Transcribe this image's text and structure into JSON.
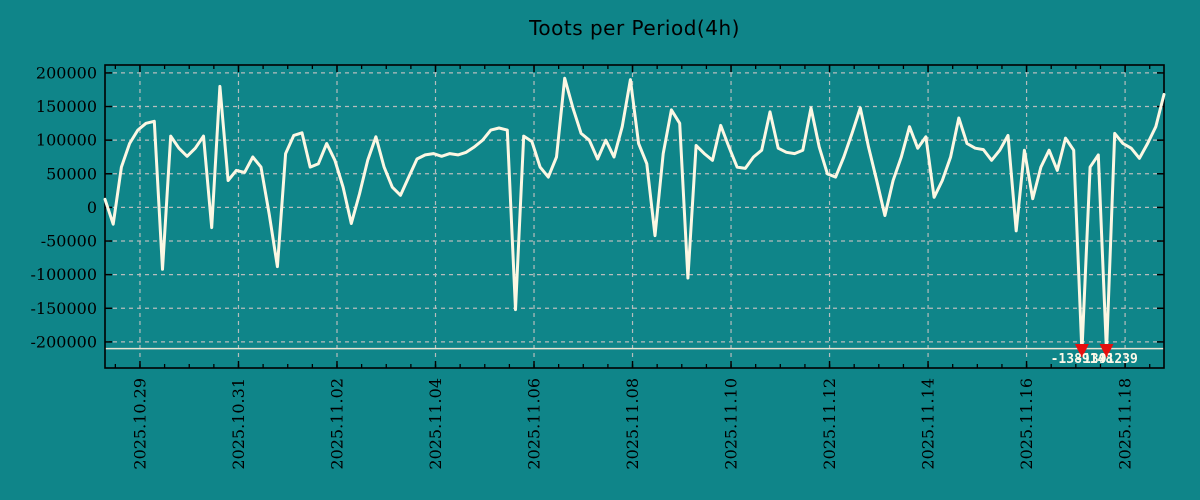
{
  "colors": {
    "background": "#0f8589",
    "line": "#fcf7e3",
    "floor_line": "#e9e5d4",
    "grid": "#b6bdbd",
    "border": "#000000",
    "tick_label": "#000000",
    "marker_red": "#e60f0f",
    "annotation_text": "#fdf8e8"
  },
  "chart_data": {
    "type": "line",
    "title": "Toots per Period(4h)",
    "sample_interval": "4h",
    "ylim": [
      -200000,
      200000
    ],
    "grid": true,
    "legend": "none",
    "y_ticks": [
      200000,
      150000,
      100000,
      50000,
      0,
      -50000,
      -100000,
      -150000,
      -200000
    ],
    "y_tick_labels": [
      "200000",
      "150000",
      "100000",
      "50000",
      "0",
      "-50000",
      "-100000",
      "-150000",
      "-200000"
    ],
    "x_tick_labels": [
      "2025.10.29",
      "2025.10.31",
      "2025.11.02",
      "2025.11.04",
      "2025.11.06",
      "2025.11.08",
      "2025.11.10",
      "2025.11.12",
      "2025.11.14",
      "2025.11.16",
      "2025.11.18"
    ],
    "x_tick_indices": [
      4.26,
      16.26,
      28.26,
      40.26,
      52.26,
      64.26,
      76.26,
      88.26,
      100.26,
      112.26,
      124.26
    ],
    "minor_tick_step": 3,
    "floor_line_value": -210000,
    "values": [
      12000,
      -25000,
      60000,
      95000,
      115000,
      125000,
      128000,
      -92000,
      106000,
      88000,
      76000,
      88000,
      106000,
      -30000,
      180000,
      40000,
      55000,
      52000,
      75000,
      60000,
      -10000,
      -88000,
      80000,
      107000,
      111000,
      60000,
      65000,
      95000,
      70000,
      30000,
      -24000,
      20000,
      70000,
      105000,
      60000,
      30000,
      18000,
      45000,
      72000,
      78000,
      80000,
      76000,
      80000,
      78000,
      82000,
      90000,
      100000,
      115000,
      118000,
      115000,
      -152000,
      106000,
      98000,
      60000,
      45000,
      75000,
      192000,
      148000,
      110000,
      100000,
      72000,
      100000,
      75000,
      120000,
      190000,
      95000,
      65000,
      -42000,
      80000,
      145000,
      125000,
      -105000,
      92000,
      80000,
      70000,
      122000,
      90000,
      60000,
      58000,
      75000,
      85000,
      142000,
      88000,
      82000,
      80000,
      85000,
      148000,
      90000,
      50000,
      45000,
      75000,
      110000,
      148000,
      90000,
      40000,
      -12000,
      40000,
      75000,
      120000,
      88000,
      105000,
      15000,
      40000,
      75000,
      133000,
      95000,
      88000,
      86000,
      70000,
      85000,
      107000,
      -35000,
      85000,
      13000,
      60000,
      85000,
      55000,
      103000,
      85000,
      -1389148,
      60000,
      78000,
      -1391239,
      110000,
      95000,
      88000,
      73000,
      95000,
      120000,
      168000
    ],
    "annotations": [
      {
        "index": 119,
        "value": -1389148,
        "label": "-1389148",
        "marker": "red-down-arrow"
      },
      {
        "index": 122,
        "value": -1391239,
        "label": "-1391239",
        "marker": "red-down-arrow"
      }
    ]
  }
}
